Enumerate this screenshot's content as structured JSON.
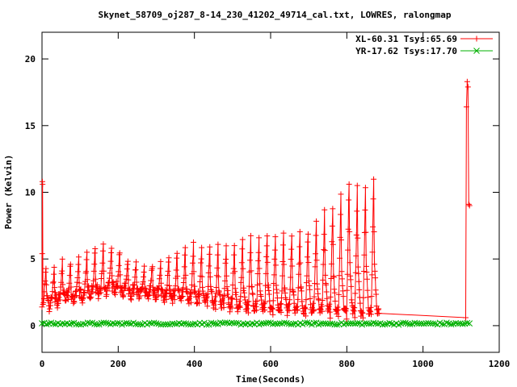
{
  "chart_data": {
    "type": "line",
    "title": "Skynet_58709_oj287_8-14_230_41202_49714_cal.txt, LOWRES, ralongmap",
    "xlabel": "Time(Seconds)",
    "ylabel": "Power (Kelvin)",
    "xlim": [
      0,
      1200
    ],
    "ylim": [
      -2,
      22
    ],
    "xticks": [
      0,
      200,
      400,
      600,
      800,
      1000,
      1200
    ],
    "yticks": [
      0,
      5,
      10,
      15,
      20
    ],
    "grid": false,
    "legend_position": "top-right",
    "series": [
      {
        "name": "XL-60.31 Tsys:65.69",
        "color": "#ff0000",
        "marker": "plus",
        "x_range": [
          0,
          1122
        ],
        "cycle_seconds": 21.5,
        "start_spike": 10.8,
        "end_spike": 18.3,
        "scan_peaks": [
          4.5,
          4.3,
          4.7,
          4.7,
          5.0,
          5.3,
          5.7,
          5.9,
          5.8,
          5.6,
          5.1,
          4.8,
          4.5,
          4.6,
          4.8,
          5.0,
          5.3,
          5.7,
          6.0,
          5.9,
          5.9,
          5.9,
          5.9,
          6.1,
          6.5,
          6.5,
          6.7,
          6.9,
          6.8,
          6.7,
          6.6,
          6.8,
          7.1,
          7.6,
          8.4,
          9.0,
          9.8,
          10.9,
          10.3,
          10.6,
          11.0
        ],
        "scan_baselines": [
          1.5,
          1.9,
          2.1,
          2.1,
          2.2,
          2.4,
          2.6,
          2.7,
          2.8,
          2.7,
          2.6,
          2.5,
          2.4,
          2.4,
          2.3,
          2.2,
          2.1,
          2.0,
          1.9,
          1.8,
          1.6,
          1.5,
          1.4,
          1.3,
          1.2,
          1.1,
          1.1,
          1.0,
          1.0,
          1.0,
          0.9,
          0.9,
          0.9,
          0.9,
          0.8,
          0.8,
          0.7,
          0.7,
          0.6,
          0.6,
          0.6
        ]
      },
      {
        "name": "YR-17.62 Tsys:17.70",
        "color": "#00b000",
        "marker": "cross",
        "x_range": [
          0,
          1122
        ],
        "level": 0.15,
        "noise": 0.08
      }
    ]
  }
}
